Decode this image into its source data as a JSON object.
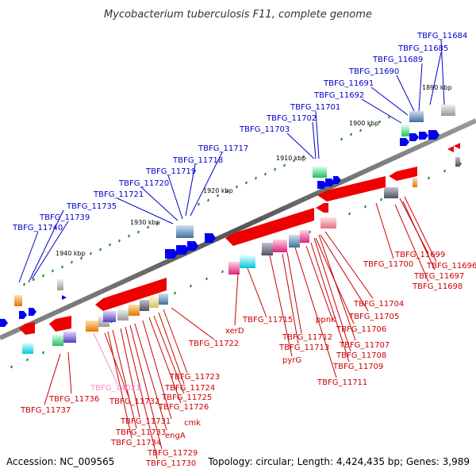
{
  "title": "Mycobacterium tuberculosis F11, complete genome",
  "footer": {
    "accession": "Accession: NC_009565",
    "summary": "Topology: circular; Length: 4,424,435 bp; Genes: 3,989"
  },
  "colors": {
    "forward_label": "#0000cc",
    "reverse_label": "#cc0000",
    "rna_label": "#ff88cc",
    "backbone": "#666666",
    "tick": "#228822"
  },
  "kbp_labels": [
    "1890 kbp",
    "1900 kbp",
    "1910 kbp",
    "1920 kbp",
    "1930 kbp",
    "1940 kbp"
  ],
  "forward_labels": [
    "TBFG_11684",
    "TBFG_11685",
    "TBFG_11689",
    "TBFG_11690",
    "TBFG_11691",
    "TBFG_11692",
    "TBFG_11701",
    "TBFG_11702",
    "TBFG_11703",
    "TBFG_11717",
    "TBFG_11718",
    "TBFG_11719",
    "TBFG_11720",
    "TBFG_11721",
    "TBFG_11735",
    "TBFG_11739",
    "TBFG_11740"
  ],
  "reverse_labels": [
    "TBFG_11699",
    "TBFG_11700",
    "TBFG_11696",
    "TBFG_11697",
    "TBFG_11698",
    "TBFG_11704",
    "TBFG_11705",
    "TBFG_11706",
    "ppnK",
    "TBFG_11707",
    "TBFG_11708",
    "TBFG_11709",
    "TBFG_11711",
    "TBFG_11712",
    "TBFG_11713",
    "pyrG",
    "TBFG_11715",
    "xerD",
    "TBFG_11722",
    "TBFG_11723",
    "TBFG_11724",
    "TBFG_11725",
    "TBFG_11726",
    "cmk",
    "engA",
    "TBFG_11729",
    "TBFG_11730",
    "TBFG_11731",
    "TBFG_11733",
    "TBFG_11734",
    "TBFG_11732",
    "TBFG_11736",
    "TBFG_11737"
  ],
  "rna_labels": [
    "TBFG_14021"
  ]
}
